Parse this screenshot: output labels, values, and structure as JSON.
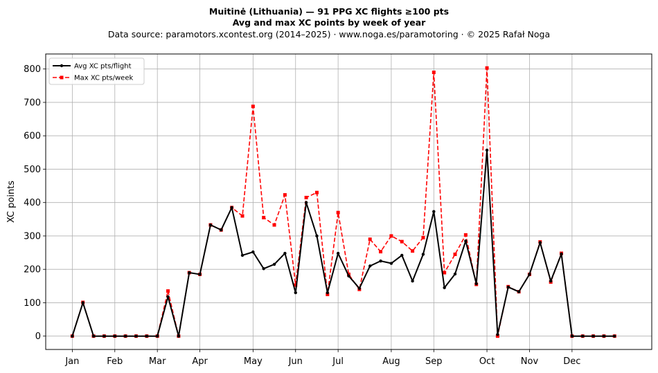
{
  "chart_data": {
    "type": "line",
    "title": "Muitinė (Lithuania)  —  91 PPG XC flights ≥100 pts",
    "subtitle": "Avg and max XC points by week of year",
    "source": "Data source: paramotors.xcontest.org (2014–2025)  ·  www.noga.es/paramotoring  ·  © 2025 Rafał Noga",
    "xlabel": "",
    "ylabel": "XC points",
    "xlim": [
      -2.5,
      54.5
    ],
    "ylim": [
      -40,
      845
    ],
    "yticks": [
      0,
      100,
      200,
      300,
      400,
      500,
      600,
      700,
      800
    ],
    "month_ticks": [
      {
        "label": "Jan",
        "week": 0
      },
      {
        "label": "Feb",
        "week": 4
      },
      {
        "label": "Mar",
        "week": 8
      },
      {
        "label": "Apr",
        "week": 12
      },
      {
        "label": "May",
        "week": 17
      },
      {
        "label": "Jun",
        "week": 21
      },
      {
        "label": "Jul",
        "week": 25
      },
      {
        "label": "Aug",
        "week": 30
      },
      {
        "label": "Sep",
        "week": 34
      },
      {
        "label": "Oct",
        "week": 39
      },
      {
        "label": "Nov",
        "week": 43
      },
      {
        "label": "Dec",
        "week": 47
      }
    ],
    "grid": true,
    "legend_position": "top-left",
    "x": [
      0,
      1,
      2,
      3,
      4,
      5,
      6,
      7,
      8,
      9,
      10,
      11,
      12,
      13,
      14,
      15,
      16,
      17,
      18,
      19,
      20,
      21,
      22,
      23,
      24,
      25,
      26,
      27,
      28,
      29,
      30,
      31,
      32,
      33,
      34,
      35,
      36,
      37,
      38,
      39,
      40,
      41,
      42,
      43,
      44,
      45,
      46,
      47,
      48,
      49,
      50,
      51
    ],
    "series": [
      {
        "name": "Avg XC pts/flight",
        "color": "#000000",
        "style": "solid",
        "marker": "circle",
        "values": [
          0,
          100,
          0,
          0,
          0,
          0,
          0,
          0,
          0,
          118,
          0,
          190,
          185,
          333,
          318,
          385,
          242,
          252,
          202,
          215,
          248,
          130,
          400,
          300,
          130,
          248,
          180,
          143,
          210,
          225,
          218,
          242,
          165,
          245,
          373,
          145,
          186,
          285,
          157,
          557,
          5,
          147,
          133,
          185,
          280,
          165,
          246,
          0,
          0,
          0,
          0,
          0
        ]
      },
      {
        "name": "Max XC pts/week",
        "color": "#ff0000",
        "style": "dashed",
        "marker": "square",
        "values": [
          0,
          101,
          0,
          0,
          0,
          0,
          0,
          0,
          0,
          135,
          0,
          190,
          185,
          333,
          318,
          385,
          360,
          688,
          355,
          333,
          423,
          153,
          415,
          430,
          125,
          370,
          185,
          140,
          290,
          253,
          300,
          283,
          255,
          295,
          790,
          190,
          245,
          303,
          155,
          803,
          0,
          148,
          133,
          185,
          282,
          162,
          248,
          0,
          0,
          0,
          0,
          0
        ]
      }
    ]
  }
}
